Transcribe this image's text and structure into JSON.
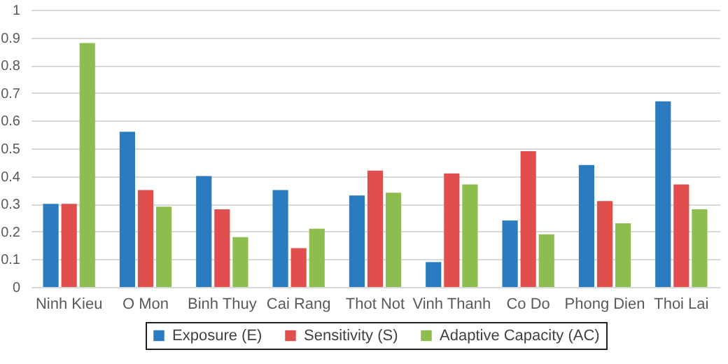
{
  "chart_data": {
    "type": "bar",
    "categories": [
      "Ninh Kieu",
      "O Mon",
      "Binh Thuy",
      "Cai Rang",
      "Thot Not",
      "Vinh Thanh",
      "Co Do",
      "Phong Dien",
      "Thoi Lai"
    ],
    "series": [
      {
        "name": "Exposure (E)",
        "color": "#2a7bc0",
        "values": [
          0.3,
          0.56,
          0.4,
          0.35,
          0.33,
          0.09,
          0.24,
          0.44,
          0.67
        ]
      },
      {
        "name": "Sensitivity (S)",
        "color": "#e04e4e",
        "values": [
          0.3,
          0.35,
          0.28,
          0.14,
          0.42,
          0.41,
          0.49,
          0.31,
          0.37
        ]
      },
      {
        "name": "Adaptive Capacity (AC)",
        "color": "#8dbd4f",
        "values": [
          0.88,
          0.29,
          0.18,
          0.21,
          0.34,
          0.37,
          0.19,
          0.23,
          0.28
        ]
      }
    ],
    "ylim": [
      0,
      1
    ],
    "yticks": [
      0,
      0.1,
      0.2,
      0.3,
      0.4,
      0.5,
      0.6,
      0.7,
      0.8,
      0.9,
      1
    ],
    "grid": "y",
    "legend": "bottom"
  }
}
